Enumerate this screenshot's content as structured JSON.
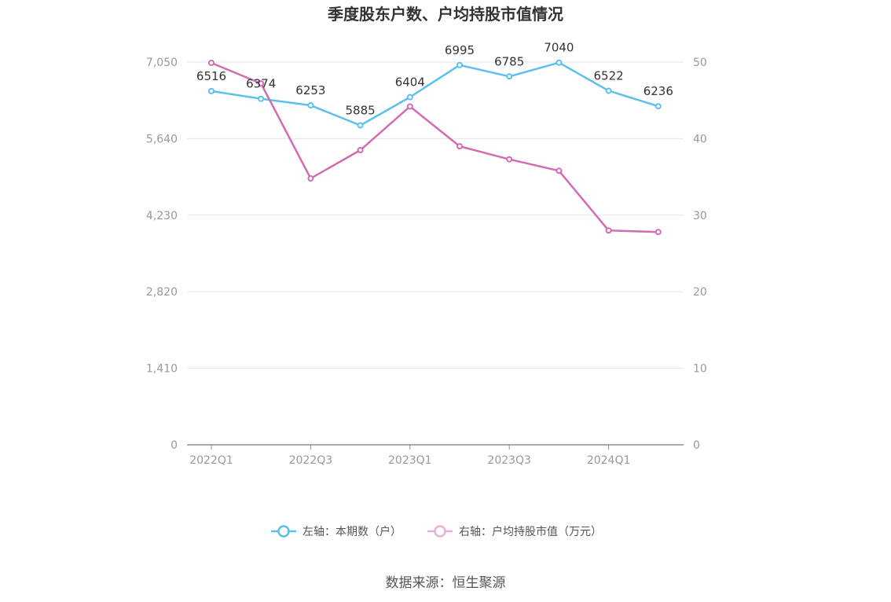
{
  "chart_data": {
    "type": "line",
    "title": "季度股东户数、户均持股市值情况",
    "categories": [
      "2022Q1",
      "2022Q2",
      "2022Q3",
      "2022Q4",
      "2023Q1",
      "2023Q2",
      "2023Q3",
      "2023Q4",
      "2024Q1",
      "2024Q2"
    ],
    "x_tick_labels": [
      "2022Q1",
      "2022Q3",
      "2023Q1",
      "2023Q3",
      "2024Q1"
    ],
    "left_axis": {
      "ylim": [
        0,
        7050
      ],
      "ticks": [
        "0",
        "1,410",
        "2,820",
        "4,230",
        "5,640",
        "7,050"
      ]
    },
    "right_axis": {
      "ylim": [
        0,
        50
      ],
      "ticks": [
        "0",
        "10",
        "20",
        "30",
        "40",
        "50"
      ]
    },
    "grid": true,
    "legend_position": "bottom-center",
    "series": [
      {
        "name": "左轴：本期数（户）",
        "axis": "left",
        "color": "#5BC0EB",
        "values": [
          6516,
          6374,
          6253,
          5885,
          6404,
          6995,
          6785,
          7040,
          6522,
          6236
        ],
        "labels": [
          "6516",
          "6374",
          "6253",
          "5885",
          "6404",
          "6995",
          "6785",
          "7040",
          "6522",
          "6236"
        ]
      },
      {
        "name": "右轴：户均持股市值（万元）",
        "axis": "right",
        "color": "#D36BB2",
        "values": [
          49.9,
          47.2,
          34.8,
          38.5,
          44.2,
          39.0,
          37.3,
          35.8,
          28.0,
          27.8
        ]
      }
    ]
  },
  "source": "数据来源：恒生聚源"
}
